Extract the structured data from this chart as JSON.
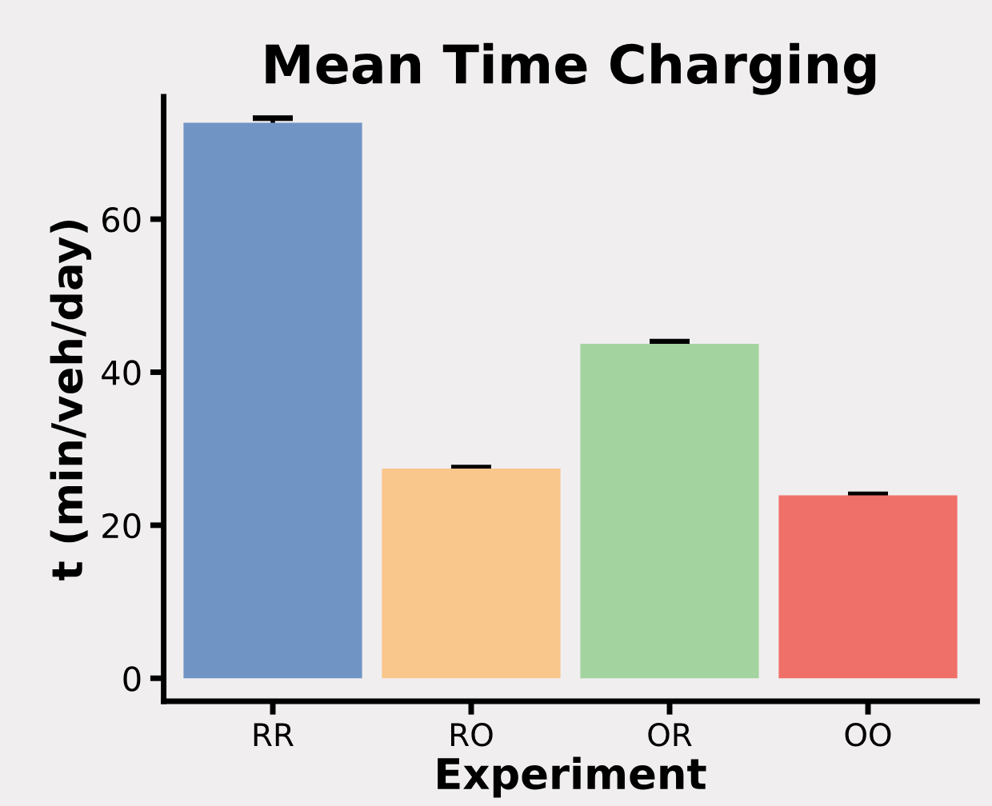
{
  "chart_data": {
    "type": "bar",
    "title": "Mean Time Charging",
    "xlabel": "Experiment",
    "ylabel": "t (min/veh/day)",
    "categories": [
      "RR",
      "RO",
      "OR",
      "OO"
    ],
    "values": [
      72.6,
      27.4,
      43.7,
      23.9
    ],
    "errors": [
      0.6,
      0.15,
      0.3,
      0.15
    ],
    "colors": [
      "#7094c4",
      "#f9c68c",
      "#a3d49f",
      "#ef7068"
    ],
    "ylim": [
      -3,
      76
    ],
    "yticks": [
      0,
      20,
      40,
      60
    ],
    "grid": false
  }
}
